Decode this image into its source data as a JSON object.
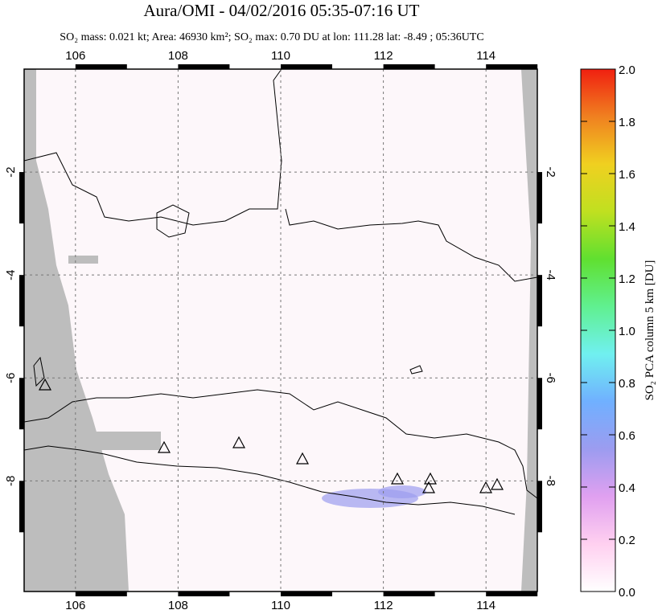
{
  "chart_data": {
    "type": "map",
    "title": "Aura/OMI - 04/02/2016 05:35-07:16 UT",
    "subtitle": "SO₂ mass: 0.021 kt; Area: 46930 km²; SO₂ max: 0.70 DU at lon: 111.28 lat: -8.49 ; 05:36UTC",
    "xlim": [
      105,
      115
    ],
    "xticks": [
      106,
      108,
      110,
      112,
      114
    ],
    "ylim": [
      -10.15,
      0
    ],
    "yticks": [
      -2,
      -4,
      -6,
      -8
    ],
    "colorbar": {
      "label": "SO₂ PCA column 5 km [DU]",
      "lim": [
        0,
        2
      ],
      "ticks": [
        {
          "value": 0,
          "label": "0.0"
        },
        0.2,
        0.4,
        0.6,
        0.8,
        {
          "value": 1,
          "label": "1.0"
        },
        1.2,
        1.4,
        1.6,
        1.8,
        {
          "value": 2,
          "label": "2.0"
        }
      ],
      "colors": [
        "#ffffff",
        "#ffd0f0",
        "#e0a0f0",
        "#9c9cf0",
        "#70b0ff",
        "#70f0f0",
        "#60f090",
        "#60e030",
        "#c0e020",
        "#f0d020",
        "#f08020",
        "#f02010"
      ]
    },
    "grid": true
  }
}
